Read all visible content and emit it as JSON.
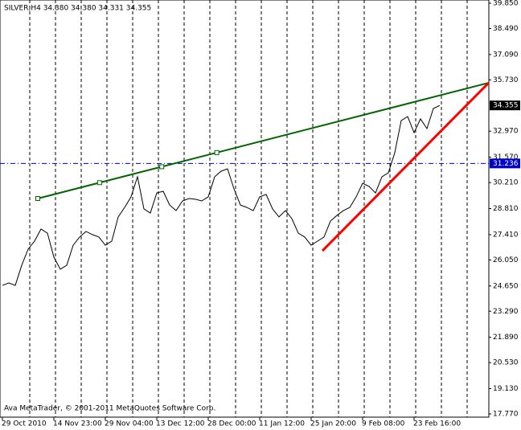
{
  "chart_data": {
    "type": "line",
    "title": "SILVER,H4 34.380 34.380 34.331 34.355",
    "footer": "Ava MetaTrader, © 2001-2011 MetaQuotes Software Corp.",
    "categories": [
      "29 Oct 2010",
      null,
      null,
      null,
      null,
      null,
      null,
      null,
      "14 Nov 23:00",
      null,
      null,
      null,
      null,
      null,
      null,
      null,
      "29 Nov 04:00",
      null,
      null,
      null,
      null,
      null,
      null,
      null,
      "13 Dec 12:00",
      null,
      null,
      null,
      null,
      null,
      null,
      null,
      "28 Dec 00:00",
      null,
      null,
      null,
      null,
      null,
      null,
      null,
      "11 Jan 12:00",
      null,
      null,
      null,
      null,
      null,
      null,
      null,
      "25 Jan 20:00",
      null,
      null,
      null,
      null,
      null,
      null,
      null,
      "9 Feb 08:00",
      null,
      null,
      null,
      null,
      null,
      null,
      null,
      "23 Feb 16:00",
      null,
      null,
      null,
      null
    ],
    "series": [
      {
        "name": "SILVER,H4",
        "color": "#000000",
        "values": [
          24.68,
          24.81,
          24.68,
          25.76,
          26.63,
          27.06,
          27.71,
          27.49,
          26.2,
          25.55,
          25.76,
          26.84,
          27.28,
          27.58,
          27.41,
          27.28,
          26.84,
          27.06,
          28.36,
          28.87,
          29.44,
          30.52,
          28.79,
          28.57,
          29.65,
          29.74,
          29.0,
          28.7,
          29.22,
          29.35,
          29.31,
          29.22,
          29.44,
          30.52,
          30.82,
          30.95,
          29.87,
          29.0,
          28.87,
          28.7,
          29.44,
          29.57,
          28.79,
          28.36,
          28.7,
          28.27,
          27.49,
          27.28,
          26.84,
          27.06,
          27.28,
          28.14,
          28.44,
          28.7,
          28.87,
          29.44,
          30.17,
          30.0,
          29.65,
          30.52,
          30.73,
          31.81,
          33.54,
          33.76,
          32.89,
          33.63,
          33.11,
          34.19,
          34.355
        ]
      }
    ],
    "ylim": [
      17.77,
      39.85
    ],
    "yticks": [
      {
        "value": 39.85,
        "label": "39.850"
      },
      {
        "value": 38.49,
        "label": "38.490"
      },
      {
        "value": 37.09,
        "label": "37.090"
      },
      {
        "value": 35.73,
        "label": "35.730"
      },
      {
        "value": 32.97,
        "label": "32.970"
      },
      {
        "value": 31.57,
        "label": "31.570"
      },
      {
        "value": 30.21,
        "label": "30.210"
      },
      {
        "value": 28.81,
        "label": "28.810"
      },
      {
        "value": 27.41,
        "label": "27.410"
      },
      {
        "value": 26.05,
        "label": "26.050"
      },
      {
        "value": 24.65,
        "label": "24.650"
      },
      {
        "value": 23.29,
        "label": "23.290"
      },
      {
        "value": 21.89,
        "label": "21.890"
      },
      {
        "value": 20.53,
        "label": "20.530"
      },
      {
        "value": 19.13,
        "label": "19.130"
      },
      {
        "value": 17.77,
        "label": "17.770"
      }
    ],
    "current_price": {
      "value": 34.355,
      "label": "34.355"
    },
    "hline": {
      "value": 31.236,
      "label": "31.236",
      "color": "#0000cd"
    },
    "trendlines": [
      {
        "color": "#006400",
        "x": [
          5.5,
          75.6
        ],
        "y": [
          29.35,
          35.57
        ]
      },
      {
        "color": "#ff0000",
        "x": [
          49.75,
          75.6
        ],
        "y": [
          26.54,
          35.57
        ]
      }
    ],
    "grid": true
  }
}
